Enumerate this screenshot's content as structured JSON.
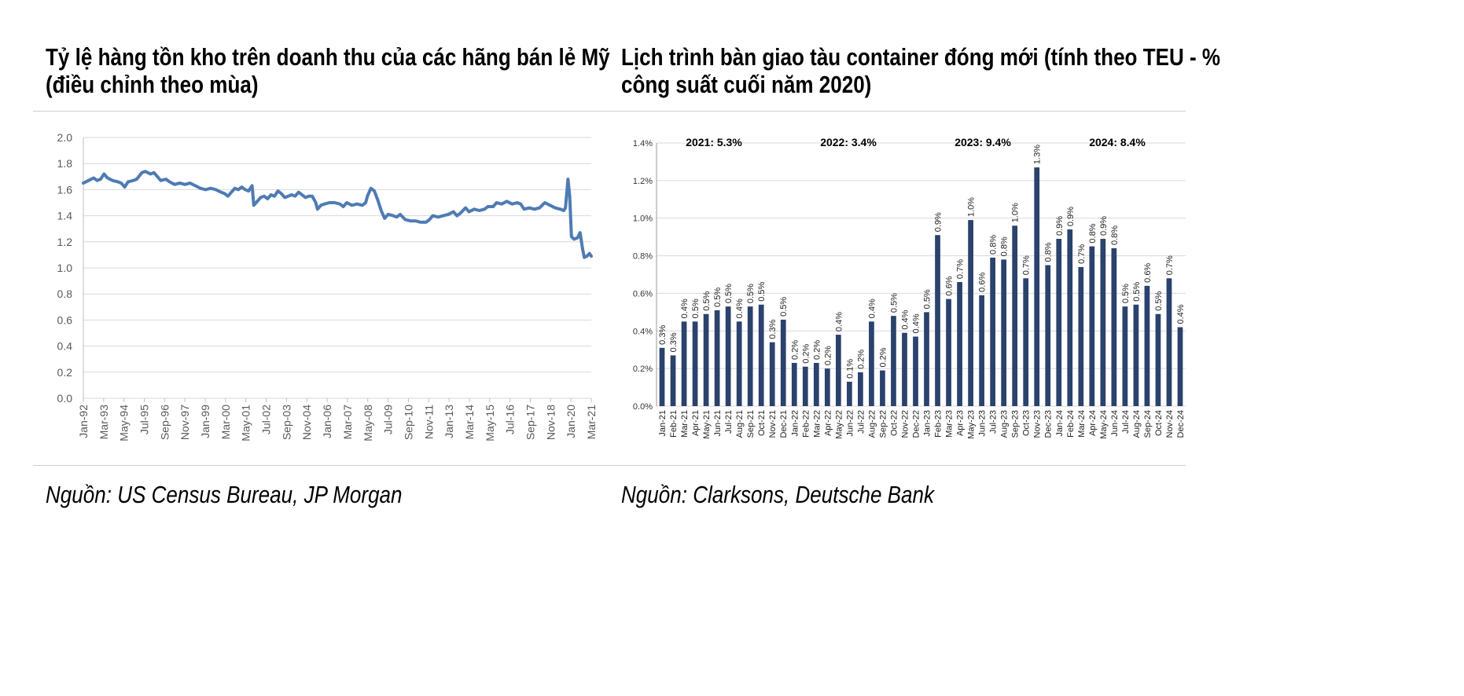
{
  "left_panel": {
    "title_line1": "Tỷ lệ hàng tồn kho trên doanh thu của các hãng bán lẻ Mỹ",
    "title_line2": "(điều chỉnh theo mùa)",
    "source": "Nguồn: US Census Bureau, JP Morgan"
  },
  "right_panel": {
    "title_line1": "Lịch trình bàn giao tàu container đóng mới (tính theo TEU - %",
    "title_line2": "công suất cuối năm 2020)",
    "source": "Nguồn: Clarksons, Deutsche Bank"
  },
  "chart_data": [
    {
      "type": "line",
      "title": "Tỷ lệ hàng tồn kho trên doanh thu của các hãng bán lẻ Mỹ (điều chỉnh theo mùa)",
      "ylim": [
        0,
        2.0
      ],
      "y_ticks": [
        "0.0",
        "0.2",
        "0.4",
        "0.6",
        "0.8",
        "1.0",
        "1.2",
        "1.4",
        "1.6",
        "1.8",
        "2.0"
      ],
      "x_tick_labels": [
        "Jan-92",
        "Mar-93",
        "May-94",
        "Jul-95",
        "Sep-96",
        "Nov-97",
        "Jan-99",
        "Mar-00",
        "May-01",
        "Jul-02",
        "Sep-03",
        "Nov-04",
        "Jan-06",
        "Mar-07",
        "May-08",
        "Jul-09",
        "Sep-10",
        "Nov-11",
        "Jan-13",
        "Mar-14",
        "May-15",
        "Jul-16",
        "Sep-17",
        "Nov-18",
        "Jan-20",
        "Mar-21"
      ],
      "x_range": [
        1992.0,
        2021.5
      ],
      "grid": true,
      "line_color": "#4f7bb3",
      "series": [
        {
          "points": [
            [
              1992.0,
              1.65
            ],
            [
              1992.3,
              1.67
            ],
            [
              1992.6,
              1.69
            ],
            [
              1992.8,
              1.67
            ],
            [
              1993.0,
              1.68
            ],
            [
              1993.2,
              1.72
            ],
            [
              1993.4,
              1.69
            ],
            [
              1993.7,
              1.67
            ],
            [
              1994.0,
              1.66
            ],
            [
              1994.2,
              1.65
            ],
            [
              1994.4,
              1.62
            ],
            [
              1994.6,
              1.66
            ],
            [
              1994.9,
              1.67
            ],
            [
              1995.1,
              1.68
            ],
            [
              1995.4,
              1.73
            ],
            [
              1995.6,
              1.74
            ],
            [
              1995.9,
              1.72
            ],
            [
              1996.1,
              1.73
            ],
            [
              1996.3,
              1.7
            ],
            [
              1996.5,
              1.67
            ],
            [
              1996.8,
              1.68
            ],
            [
              1997.0,
              1.66
            ],
            [
              1997.3,
              1.64
            ],
            [
              1997.6,
              1.65
            ],
            [
              1997.9,
              1.64
            ],
            [
              1998.2,
              1.65
            ],
            [
              1998.5,
              1.63
            ],
            [
              1998.8,
              1.61
            ],
            [
              1999.1,
              1.6
            ],
            [
              1999.4,
              1.61
            ],
            [
              1999.7,
              1.6
            ],
            [
              2000.0,
              1.58
            ],
            [
              2000.2,
              1.57
            ],
            [
              2000.4,
              1.55
            ],
            [
              2000.6,
              1.58
            ],
            [
              2000.8,
              1.61
            ],
            [
              2001.0,
              1.6
            ],
            [
              2001.2,
              1.62
            ],
            [
              2001.4,
              1.6
            ],
            [
              2001.6,
              1.59
            ],
            [
              2001.8,
              1.63
            ],
            [
              2001.9,
              1.48
            ],
            [
              2002.1,
              1.51
            ],
            [
              2002.3,
              1.54
            ],
            [
              2002.5,
              1.55
            ],
            [
              2002.7,
              1.53
            ],
            [
              2002.9,
              1.56
            ],
            [
              2003.1,
              1.55
            ],
            [
              2003.3,
              1.59
            ],
            [
              2003.5,
              1.57
            ],
            [
              2003.7,
              1.54
            ],
            [
              2003.9,
              1.55
            ],
            [
              2004.1,
              1.56
            ],
            [
              2004.3,
              1.55
            ],
            [
              2004.5,
              1.58
            ],
            [
              2004.7,
              1.56
            ],
            [
              2004.9,
              1.54
            ],
            [
              2005.1,
              1.55
            ],
            [
              2005.3,
              1.55
            ],
            [
              2005.5,
              1.5
            ],
            [
              2005.6,
              1.45
            ],
            [
              2005.8,
              1.48
            ],
            [
              2006.0,
              1.49
            ],
            [
              2006.3,
              1.5
            ],
            [
              2006.6,
              1.5
            ],
            [
              2006.9,
              1.49
            ],
            [
              2007.1,
              1.47
            ],
            [
              2007.3,
              1.5
            ],
            [
              2007.6,
              1.48
            ],
            [
              2007.9,
              1.49
            ],
            [
              2008.2,
              1.48
            ],
            [
              2008.4,
              1.5
            ],
            [
              2008.5,
              1.55
            ],
            [
              2008.7,
              1.61
            ],
            [
              2008.9,
              1.59
            ],
            [
              2009.1,
              1.52
            ],
            [
              2009.3,
              1.44
            ],
            [
              2009.5,
              1.38
            ],
            [
              2009.7,
              1.41
            ],
            [
              2010.0,
              1.4
            ],
            [
              2010.2,
              1.39
            ],
            [
              2010.4,
              1.41
            ],
            [
              2010.7,
              1.37
            ],
            [
              2011.0,
              1.36
            ],
            [
              2011.3,
              1.36
            ],
            [
              2011.6,
              1.35
            ],
            [
              2011.9,
              1.35
            ],
            [
              2012.1,
              1.37
            ],
            [
              2012.3,
              1.4
            ],
            [
              2012.6,
              1.39
            ],
            [
              2012.9,
              1.4
            ],
            [
              2013.2,
              1.41
            ],
            [
              2013.5,
              1.43
            ],
            [
              2013.7,
              1.4
            ],
            [
              2013.9,
              1.42
            ],
            [
              2014.2,
              1.46
            ],
            [
              2014.4,
              1.43
            ],
            [
              2014.7,
              1.45
            ],
            [
              2015.0,
              1.44
            ],
            [
              2015.3,
              1.45
            ],
            [
              2015.5,
              1.47
            ],
            [
              2015.8,
              1.47
            ],
            [
              2016.0,
              1.5
            ],
            [
              2016.3,
              1.49
            ],
            [
              2016.6,
              1.51
            ],
            [
              2016.9,
              1.49
            ],
            [
              2017.2,
              1.5
            ],
            [
              2017.4,
              1.49
            ],
            [
              2017.6,
              1.45
            ],
            [
              2017.9,
              1.46
            ],
            [
              2018.2,
              1.45
            ],
            [
              2018.5,
              1.46
            ],
            [
              2018.8,
              1.5
            ],
            [
              2019.1,
              1.48
            ],
            [
              2019.4,
              1.46
            ],
            [
              2019.7,
              1.45
            ],
            [
              2019.9,
              1.44
            ],
            [
              2020.0,
              1.46
            ],
            [
              2020.15,
              1.68
            ],
            [
              2020.25,
              1.55
            ],
            [
              2020.35,
              1.24
            ],
            [
              2020.5,
              1.22
            ],
            [
              2020.7,
              1.23
            ],
            [
              2020.85,
              1.27
            ],
            [
              2021.0,
              1.14
            ],
            [
              2021.1,
              1.08
            ],
            [
              2021.25,
              1.09
            ],
            [
              2021.4,
              1.11
            ],
            [
              2021.5,
              1.09
            ]
          ]
        }
      ]
    },
    {
      "type": "bar",
      "title": "Lịch trình bàn giao tàu container đóng mới (tính theo TEU - % công suất cuối năm 2020)",
      "ylim": [
        0,
        1.4
      ],
      "y_ticks": [
        "0.0%",
        "0.2%",
        "0.4%",
        "0.6%",
        "0.8%",
        "1.0%",
        "1.2%",
        "1.4%"
      ],
      "grid": true,
      "bar_color": "#2a426c",
      "annotations": [
        "2021: 5.3%",
        "2022: 3.4%",
        "2023: 9.4%",
        "2024: 8.4%"
      ],
      "categories": [
        "Jan-21",
        "Feb-21",
        "Mar-21",
        "Apr-21",
        "May-21",
        "Jun-21",
        "Jul-21",
        "Aug-21",
        "Sep-21",
        "Oct-21",
        "Nov-21",
        "Dec-21",
        "Jan-22",
        "Feb-22",
        "Mar-22",
        "Apr-22",
        "May-22",
        "Jun-22",
        "Jul-22",
        "Aug-22",
        "Sep-22",
        "Oct-22",
        "Nov-22",
        "Dec-22",
        "Jan-23",
        "Feb-23",
        "Mar-23",
        "Apr-23",
        "May-23",
        "Jun-23",
        "Jul-23",
        "Aug-23",
        "Sep-23",
        "Oct-23",
        "Nov-23",
        "Dec-23",
        "Jan-24",
        "Feb-24",
        "Mar-24",
        "Apr-24",
        "May-24",
        "Jun-24",
        "Jul-24",
        "Aug-24",
        "Sep-24",
        "Oct-24",
        "Nov-24",
        "Dec-24"
      ],
      "values": [
        0.31,
        0.27,
        0.45,
        0.45,
        0.49,
        0.51,
        0.53,
        0.45,
        0.53,
        0.54,
        0.34,
        0.46,
        0.23,
        0.21,
        0.23,
        0.2,
        0.38,
        0.13,
        0.18,
        0.45,
        0.19,
        0.48,
        0.39,
        0.37,
        0.5,
        0.91,
        0.57,
        0.66,
        0.99,
        0.59,
        0.79,
        0.78,
        0.96,
        0.68,
        1.27,
        0.75,
        0.89,
        0.94,
        0.74,
        0.85,
        0.89,
        0.84,
        0.53,
        0.54,
        0.64,
        0.49,
        0.68,
        0.42
      ],
      "data_labels": [
        "0.3%",
        "0.3%",
        "0.4%",
        "0.5%",
        "0.5%",
        "0.5%",
        "0.5%",
        "0.4%",
        "0.5%",
        "0.5%",
        "0.3%",
        "0.5%",
        "0.2%",
        "0.2%",
        "0.2%",
        "0.2%",
        "0.4%",
        "0.1%",
        "0.2%",
        "0.4%",
        "0.2%",
        "0.5%",
        "0.4%",
        "0.4%",
        "0.5%",
        "0.9%",
        "0.6%",
        "0.7%",
        "1.0%",
        "0.6%",
        "0.8%",
        "0.8%",
        "1.0%",
        "0.7%",
        "1.3%",
        "0.8%",
        "0.9%",
        "0.9%",
        "0.7%",
        "0.8%",
        "0.9%",
        "0.8%",
        "0.5%",
        "0.5%",
        "0.6%",
        "0.5%",
        "0.7%",
        "0.4%"
      ]
    }
  ]
}
